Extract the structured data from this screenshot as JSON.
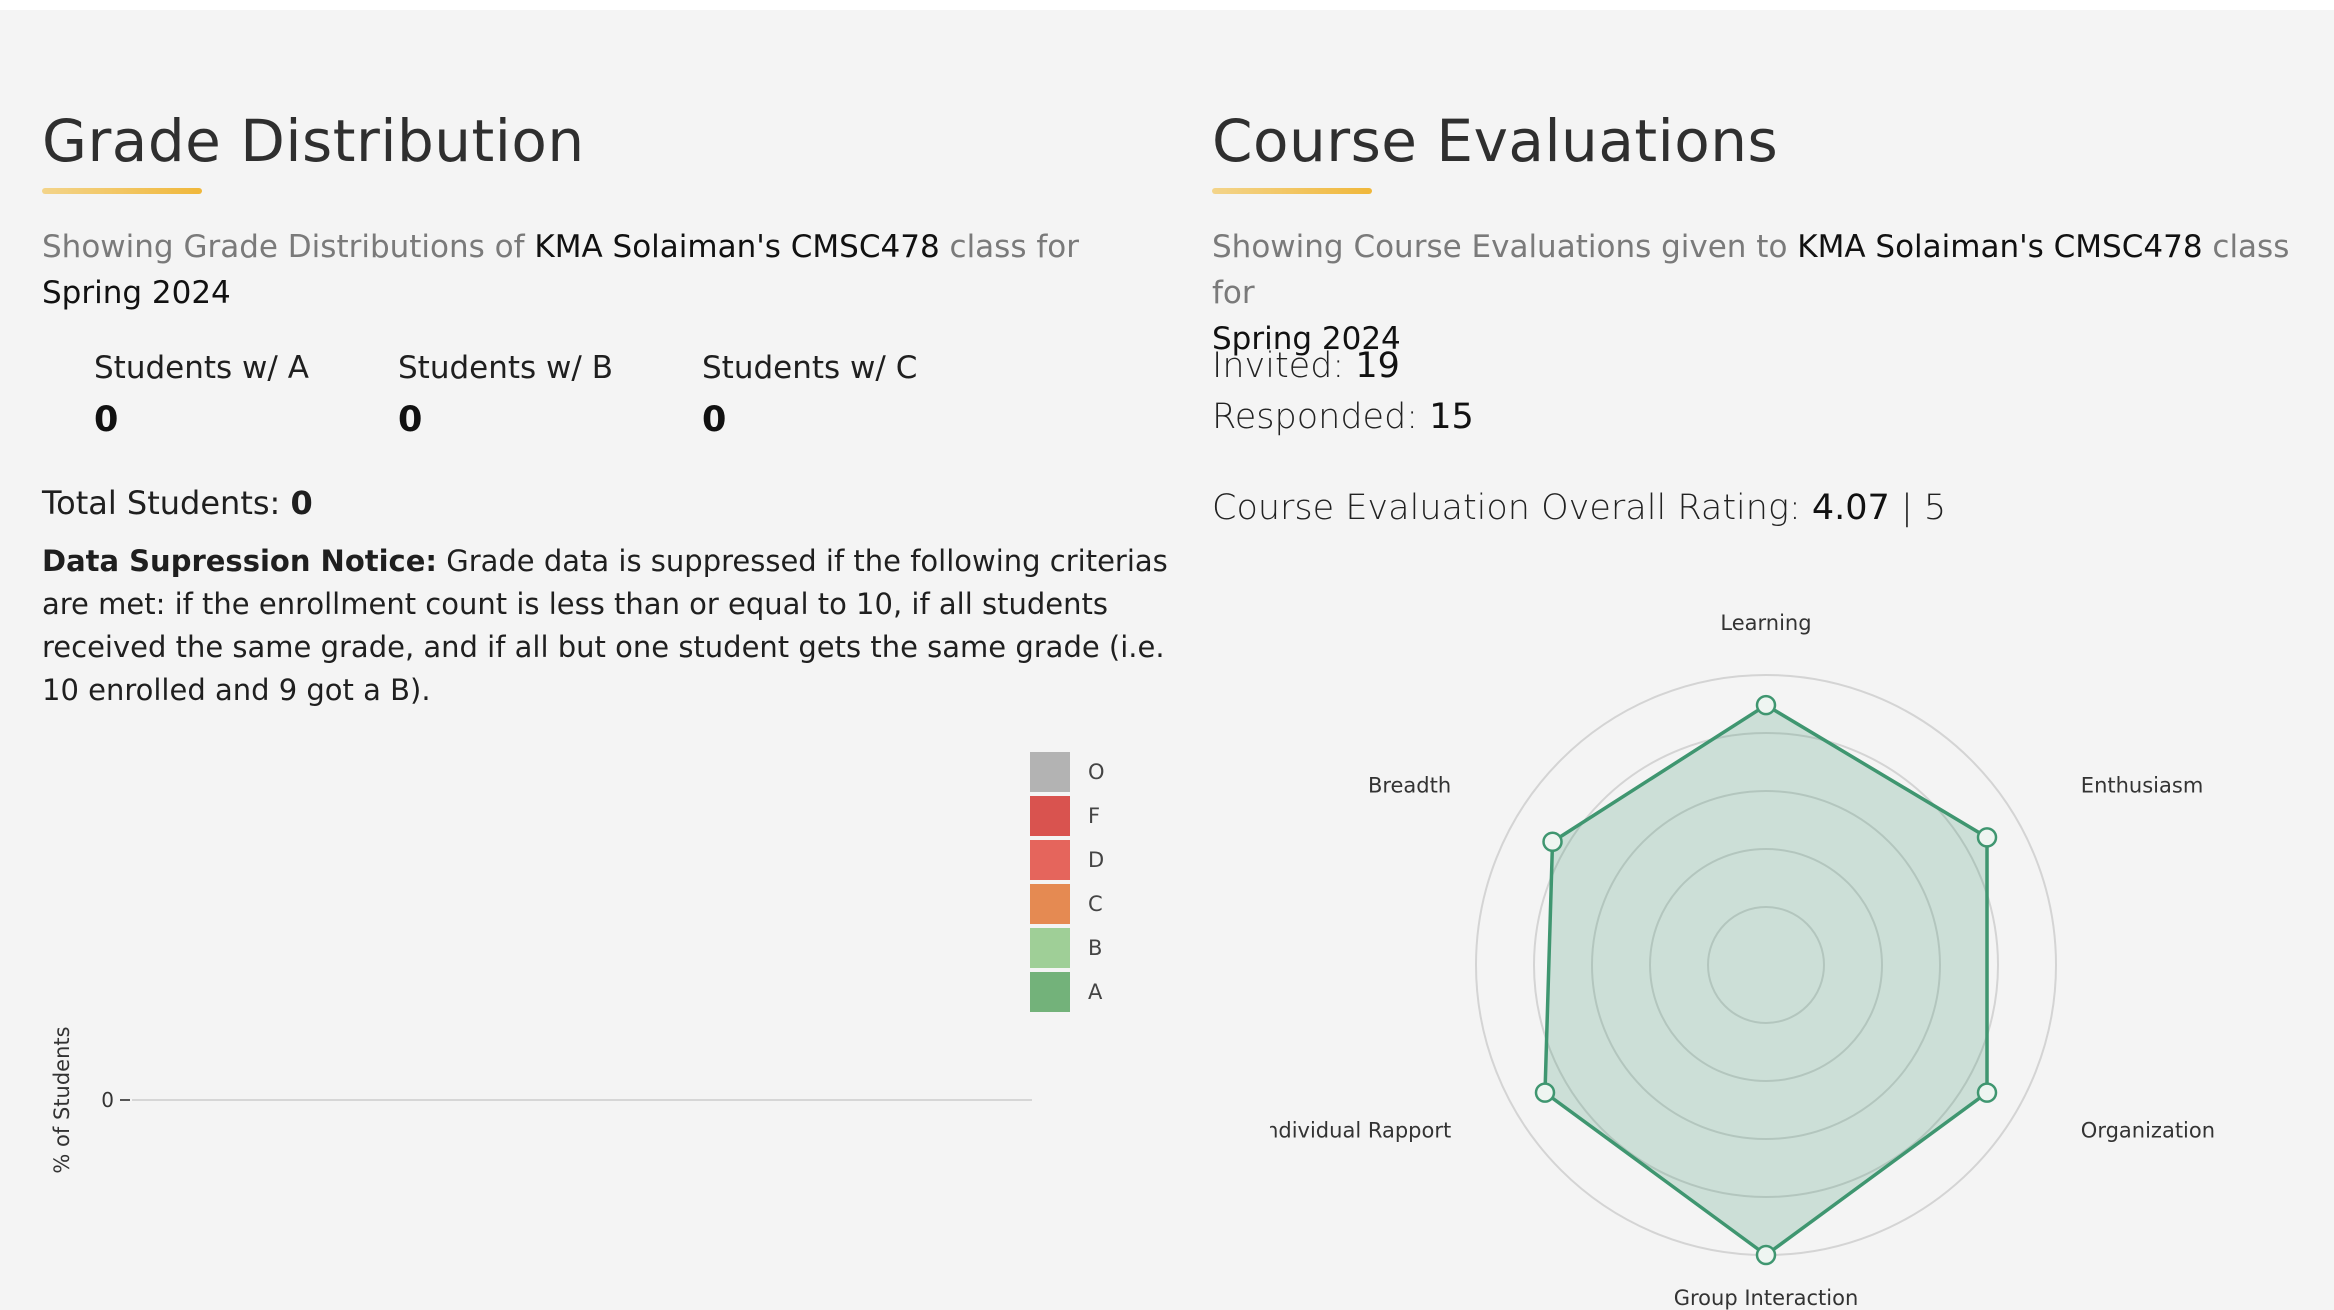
{
  "grade": {
    "title": "Grade Distribution",
    "subtitle_prefix": "Showing Grade Distributions of ",
    "instructor_course": "KMA Solaiman's CMSC478",
    "subtitle_mid": " class for ",
    "term": "Spring 2024",
    "stats": [
      {
        "label": "Students w/ A",
        "value": "0"
      },
      {
        "label": "Students w/ B",
        "value": "0"
      },
      {
        "label": "Students w/ C",
        "value": "0"
      }
    ],
    "total_label": "Total Students: ",
    "total_value": "0",
    "notice_label": "Data Supression Notice:",
    "notice_text": " Grade data is suppressed if the following criterias are met: if the enrollment count is less than or equal to 10, if all students received the same grade, and if all but one student gets the same grade (i.e. 10 enrolled and 9 got a B)."
  },
  "chart_data": [
    {
      "type": "bar",
      "ylabel": "% of Students",
      "yticks": [
        "0"
      ],
      "categories": [],
      "series": [],
      "legend": [
        {
          "label": "O",
          "color": "#b3b3b3"
        },
        {
          "label": "F",
          "color": "#d9534f"
        },
        {
          "label": "D",
          "color": "#e5655c"
        },
        {
          "label": "C",
          "color": "#e58a52"
        },
        {
          "label": "B",
          "color": "#9fcf97"
        },
        {
          "label": "A",
          "color": "#73b27a"
        }
      ]
    },
    {
      "type": "radar",
      "axes": [
        "Learning",
        "Enthusiasm",
        "Organization",
        "Group Interaction",
        "Individual Rapport",
        "Breadth"
      ],
      "values": [
        4.48,
        4.4,
        4.4,
        5.0,
        4.4,
        4.25
      ],
      "rmin": 0,
      "rmax": 5,
      "rings": 5,
      "color": "#3f9670"
    }
  ],
  "eval": {
    "title": "Course Evaluations",
    "subtitle_prefix": "Showing Course Evaluations given to ",
    "instructor_course": "KMA Solaiman's CMSC478",
    "subtitle_mid": " class for",
    "term": "Spring 2024",
    "invited_label": "Invited: ",
    "invited_value": "19",
    "responded_label": "Responded: ",
    "responded_value": "15",
    "overall_label": "Course Evaluation Overall Rating: ",
    "overall_value": "4.07",
    "overall_sep": " | 5"
  }
}
